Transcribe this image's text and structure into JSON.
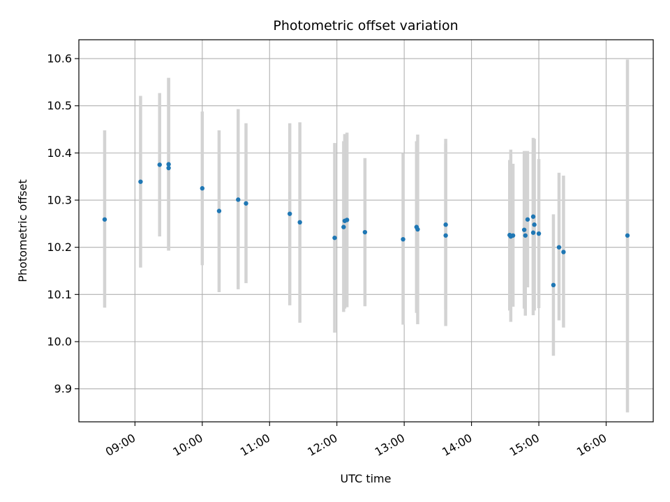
{
  "chart_data": {
    "type": "scatter",
    "title": "Photometric offset variation",
    "xlabel": "UTC time",
    "ylabel": "Photometric offset",
    "grid": true,
    "xlim": [
      "08:10",
      "16:42"
    ],
    "ylim": [
      9.83,
      10.64
    ],
    "xticks": [
      "09:00",
      "10:00",
      "11:00",
      "12:00",
      "13:00",
      "14:00",
      "15:00",
      "16:00"
    ],
    "yticks": [
      "9.9",
      "10.0",
      "10.1",
      "10.2",
      "10.3",
      "10.4",
      "10.5",
      "10.6"
    ],
    "colors": {
      "point": "#1f77b4",
      "errorbar": "#d3d3d3",
      "grid": "#b0b0b0"
    },
    "points": [
      {
        "t": "08:33",
        "y": 10.259,
        "lo": 10.072,
        "hi": 10.448
      },
      {
        "t": "09:05",
        "y": 10.339,
        "lo": 10.157,
        "hi": 10.521
      },
      {
        "t": "09:22",
        "y": 10.375,
        "lo": 10.223,
        "hi": 10.527
      },
      {
        "t": "09:30",
        "y": 10.376,
        "lo": 10.193,
        "hi": 10.559
      },
      {
        "t": "09:30",
        "y": 10.368,
        "lo": 10.193,
        "hi": 10.559
      },
      {
        "t": "10:00",
        "y": 10.325,
        "lo": 10.162,
        "hi": 10.488
      },
      {
        "t": "10:15",
        "y": 10.277,
        "lo": 10.105,
        "hi": 10.448
      },
      {
        "t": "10:32",
        "y": 10.301,
        "lo": 10.111,
        "hi": 10.493
      },
      {
        "t": "10:39",
        "y": 10.293,
        "lo": 10.124,
        "hi": 10.463
      },
      {
        "t": "11:18",
        "y": 10.271,
        "lo": 10.077,
        "hi": 10.463
      },
      {
        "t": "11:27",
        "y": 10.253,
        "lo": 10.04,
        "hi": 10.465
      },
      {
        "t": "11:58",
        "y": 10.22,
        "lo": 10.019,
        "hi": 10.421
      },
      {
        "t": "12:06",
        "y": 10.243,
        "lo": 10.063,
        "hi": 10.425
      },
      {
        "t": "12:07",
        "y": 10.256,
        "lo": 10.07,
        "hi": 10.44
      },
      {
        "t": "12:09",
        "y": 10.258,
        "lo": 10.073,
        "hi": 10.443
      },
      {
        "t": "12:25",
        "y": 10.232,
        "lo": 10.075,
        "hi": 10.389
      },
      {
        "t": "12:59",
        "y": 10.217,
        "lo": 10.036,
        "hi": 10.4
      },
      {
        "t": "13:11",
        "y": 10.243,
        "lo": 10.061,
        "hi": 10.425
      },
      {
        "t": "13:12",
        "y": 10.238,
        "lo": 10.037,
        "hi": 10.439
      },
      {
        "t": "13:37",
        "y": 10.248,
        "lo": 10.067,
        "hi": 10.43
      },
      {
        "t": "13:37",
        "y": 10.225,
        "lo": 10.033,
        "hi": 10.42
      },
      {
        "t": "14:34",
        "y": 10.226,
        "lo": 10.066,
        "hi": 10.385
      },
      {
        "t": "14:35",
        "y": 10.223,
        "lo": 10.042,
        "hi": 10.407
      },
      {
        "t": "14:37",
        "y": 10.225,
        "lo": 10.074,
        "hi": 10.377
      },
      {
        "t": "14:47",
        "y": 10.237,
        "lo": 10.07,
        "hi": 10.404
      },
      {
        "t": "14:48",
        "y": 10.225,
        "lo": 10.055,
        "hi": 10.404
      },
      {
        "t": "14:50",
        "y": 10.259,
        "lo": 10.115,
        "hi": 10.404
      },
      {
        "t": "14:55",
        "y": 10.265,
        "lo": 10.098,
        "hi": 10.432
      },
      {
        "t": "14:55",
        "y": 10.231,
        "lo": 10.056,
        "hi": 10.406
      },
      {
        "t": "14:56",
        "y": 10.248,
        "lo": 10.066,
        "hi": 10.43
      },
      {
        "t": "15:00",
        "y": 10.229,
        "lo": 10.071,
        "hi": 10.387
      },
      {
        "t": "15:13",
        "y": 10.12,
        "lo": 9.97,
        "hi": 10.27
      },
      {
        "t": "15:18",
        "y": 10.2,
        "lo": 10.045,
        "hi": 10.358
      },
      {
        "t": "15:22",
        "y": 10.19,
        "lo": 10.03,
        "hi": 10.352
      },
      {
        "t": "16:19",
        "y": 10.225,
        "lo": 9.85,
        "hi": 10.598
      }
    ]
  }
}
